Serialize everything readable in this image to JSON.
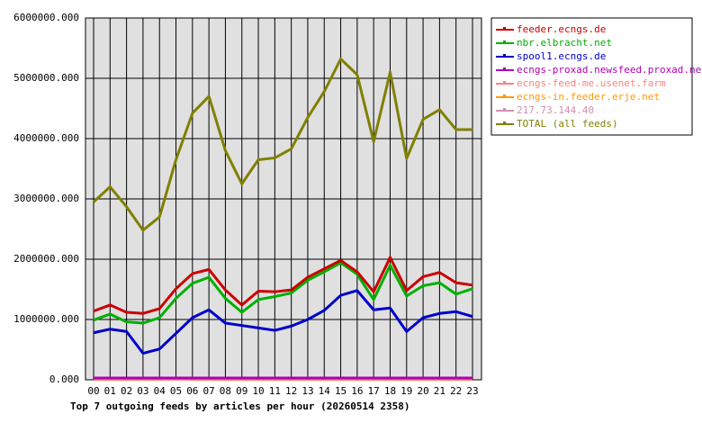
{
  "chart_data": {
    "type": "line",
    "title": "Top 7 outgoing feeds by articles per hour (20260514 2358)",
    "categories": [
      "00",
      "01",
      "02",
      "03",
      "04",
      "05",
      "06",
      "07",
      "08",
      "09",
      "10",
      "11",
      "12",
      "13",
      "14",
      "15",
      "16",
      "17",
      "18",
      "19",
      "20",
      "21",
      "22",
      "23"
    ],
    "series": [
      {
        "name": "feeder.ecngs.de",
        "color": "#cc0000",
        "values": [
          1140000,
          1240000,
          1120000,
          1100000,
          1180000,
          1510000,
          1760000,
          1830000,
          1490000,
          1240000,
          1470000,
          1460000,
          1490000,
          1700000,
          1840000,
          1980000,
          1790000,
          1460000,
          2030000,
          1480000,
          1710000,
          1780000,
          1610000,
          1570000
        ]
      },
      {
        "name": "nbr.elbracht.net",
        "color": "#00b000",
        "values": [
          990000,
          1090000,
          960000,
          940000,
          1030000,
          1350000,
          1600000,
          1700000,
          1350000,
          1120000,
          1330000,
          1380000,
          1440000,
          1650000,
          1790000,
          1940000,
          1750000,
          1330000,
          1900000,
          1390000,
          1560000,
          1610000,
          1420000,
          1510000
        ]
      },
      {
        "name": "spool1.ecngs.de",
        "color": "#0000cc",
        "values": [
          780000,
          840000,
          800000,
          440000,
          510000,
          770000,
          1030000,
          1160000,
          940000,
          900000,
          860000,
          820000,
          890000,
          1000000,
          1150000,
          1400000,
          1480000,
          1160000,
          1190000,
          800000,
          1030000,
          1100000,
          1130000,
          1050000
        ]
      },
      {
        "name": "ecngs-proxad.newsfeed.proxad.net",
        "color": "#b000b0",
        "values": [
          30000,
          30000,
          30000,
          30000,
          30000,
          30000,
          30000,
          30000,
          30000,
          30000,
          30000,
          30000,
          30000,
          30000,
          30000,
          30000,
          30000,
          30000,
          30000,
          30000,
          30000,
          30000,
          30000,
          30000
        ]
      },
      {
        "name": "ecngs-feed-me.usenet.farm",
        "color": "#ff8080",
        "values": [
          10000,
          10000,
          10000,
          10000,
          10000,
          10000,
          10000,
          10000,
          10000,
          10000,
          10000,
          10000,
          10000,
          10000,
          10000,
          10000,
          10000,
          10000,
          10000,
          10000,
          10000,
          10000,
          10000,
          10000
        ]
      },
      {
        "name": "ecngs-in.feeder.erje.net",
        "color": "#ff9900",
        "values": [
          5000,
          5000,
          5000,
          5000,
          5000,
          25000,
          5000,
          5000,
          5000,
          5000,
          5000,
          5000,
          5000,
          5000,
          5000,
          5000,
          5000,
          5000,
          5000,
          5000,
          5000,
          5000,
          5000,
          5000
        ]
      },
      {
        "name": "217.73.144.40",
        "color": "#d090b0",
        "values": [
          20000,
          20000,
          20000,
          20000,
          20000,
          20000,
          20000,
          20000,
          20000,
          20000,
          20000,
          20000,
          20000,
          20000,
          20000,
          20000,
          20000,
          20000,
          20000,
          20000,
          20000,
          20000,
          20000,
          20000
        ]
      },
      {
        "name": "TOTAL (all feeds)",
        "color": "#808000",
        "values": [
          2950000,
          3200000,
          2870000,
          2480000,
          2700000,
          3650000,
          4420000,
          4700000,
          3800000,
          3250000,
          3650000,
          3680000,
          3830000,
          4350000,
          4780000,
          5320000,
          5060000,
          3950000,
          5100000,
          3670000,
          4320000,
          4480000,
          4150000,
          4150000
        ]
      }
    ],
    "ylim": [
      0,
      6000000
    ],
    "yticks": [
      {
        "value": 0,
        "label": "0.000"
      },
      {
        "value": 1000000,
        "label": "1000000.000"
      },
      {
        "value": 2000000,
        "label": "2000000.000"
      },
      {
        "value": 3000000,
        "label": "3000000.000"
      },
      {
        "value": 4000000,
        "label": "4000000.000"
      },
      {
        "value": 5000000,
        "label": "5000000.000"
      },
      {
        "value": 6000000,
        "label": "6000000.000"
      }
    ],
    "grid": true
  }
}
